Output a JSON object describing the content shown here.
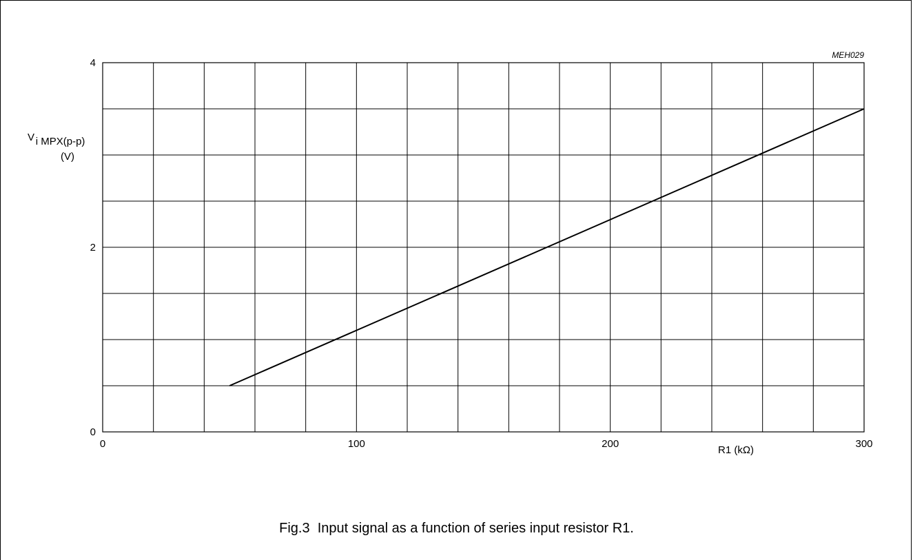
{
  "figure": {
    "code": "MEH029",
    "caption": "Fig.3  Input signal as a function of series input resistor R1."
  },
  "chart_data": {
    "type": "line",
    "xlabel": "R1 (kΩ)",
    "ylabel_main": "V",
    "ylabel_sub": "i MPX(p-p)",
    "ylabel_unit": "(V)",
    "xlim": [
      0,
      300
    ],
    "ylim": [
      0,
      4
    ],
    "x_ticks": [
      0,
      100,
      200,
      300
    ],
    "x_tick_labels": [
      "0",
      "100",
      "200",
      "300"
    ],
    "y_ticks": [
      0,
      2,
      4
    ],
    "y_tick_labels": [
      "0",
      "2",
      "4"
    ],
    "x_grid_step": 20,
    "y_grid_step": 0.5,
    "grid": true,
    "series": [
      {
        "x": [
          50,
          300
        ],
        "y": [
          0.5,
          3.5
        ]
      }
    ],
    "colors": {
      "line": "#000000",
      "grid": "#000000"
    }
  }
}
